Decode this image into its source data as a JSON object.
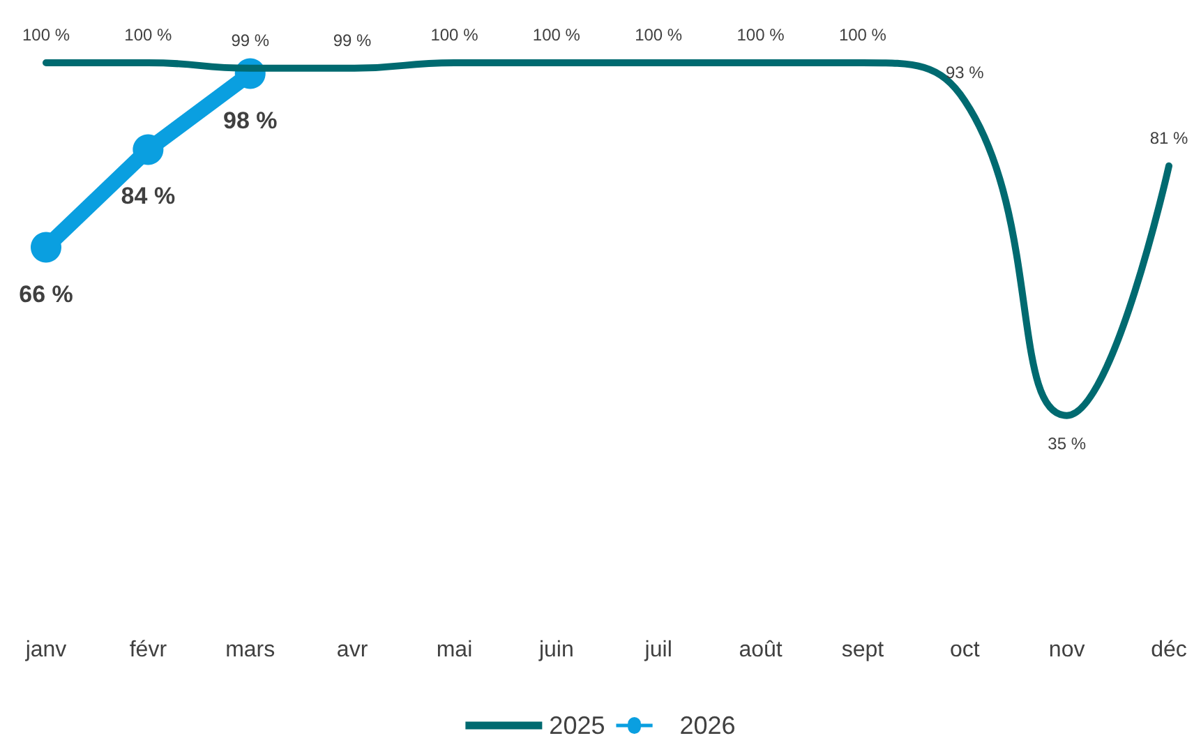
{
  "chart_data": {
    "type": "line",
    "categories": [
      "janv",
      "févr",
      "mars",
      "avr",
      "mai",
      "juin",
      "juil",
      "août",
      "sept",
      "oct",
      "nov",
      "déc"
    ],
    "series": [
      {
        "name": "2025",
        "color": "#006a70",
        "marker": "none",
        "values": [
          100,
          100,
          99,
          99,
          100,
          100,
          100,
          100,
          100,
          93,
          35,
          81
        ],
        "value_labels": [
          "100 %",
          "100 %",
          "99 %",
          "99 %",
          "100 %",
          "100 %",
          "100 %",
          "100 %",
          "100 %",
          "93 %",
          "35 %",
          "81 %"
        ]
      },
      {
        "name": "2026",
        "color": "#0a9fe0",
        "marker": "circle",
        "values": [
          66,
          84,
          98,
          null,
          null,
          null,
          null,
          null,
          null,
          null,
          null,
          null
        ],
        "value_labels": [
          "66 %",
          "84 %",
          "98 %",
          null,
          null,
          null,
          null,
          null,
          null,
          null,
          null,
          null
        ]
      }
    ],
    "grid": false,
    "legend": "bottom"
  }
}
